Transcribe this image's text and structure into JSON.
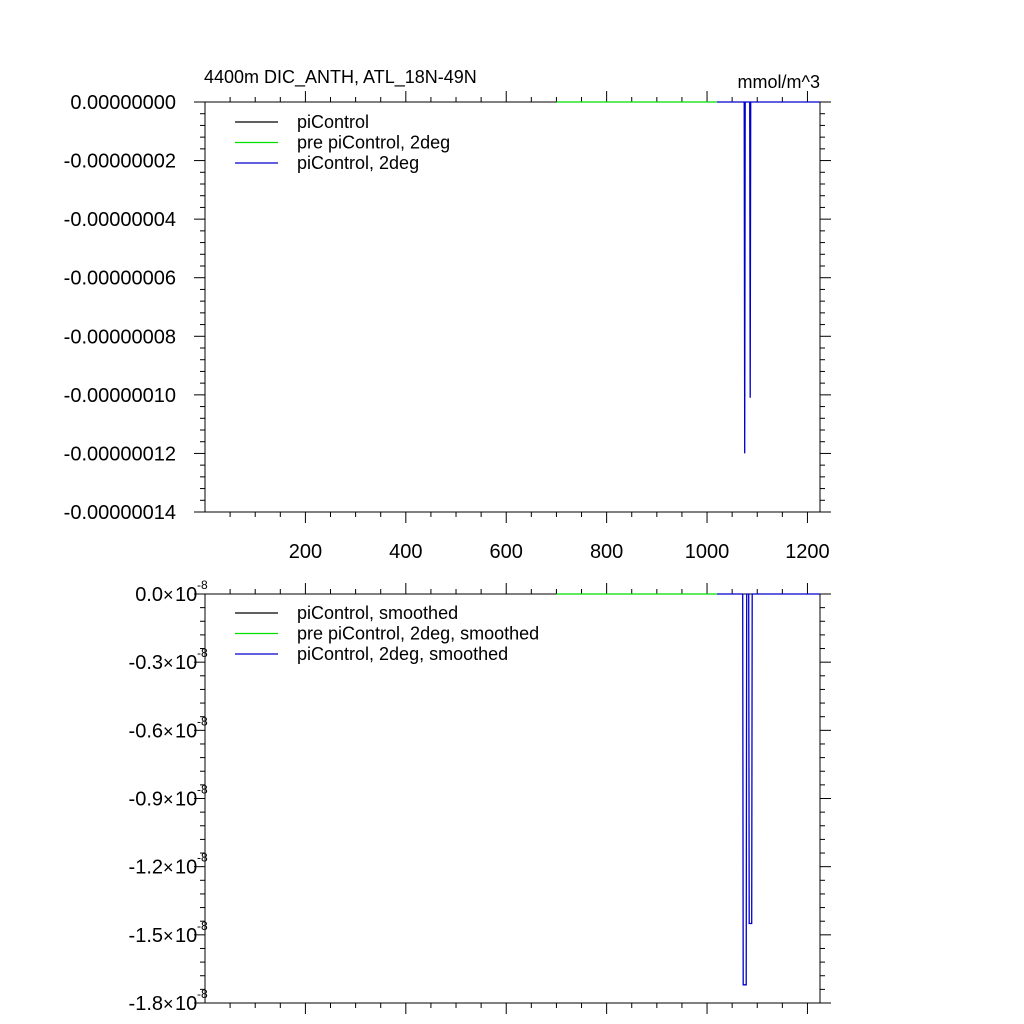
{
  "chart_data": [
    {
      "type": "line",
      "title": "4400m DIC_ANTH, ATL_18N-49N",
      "units": "mmol/m^3",
      "xlim": [
        0,
        1225
      ],
      "ylim": [
        -1.4e-07,
        0.0
      ],
      "x_ticks": [
        200,
        400,
        600,
        800,
        1000,
        1200
      ],
      "x_tick_labels": [
        "200",
        "400",
        "600",
        "800",
        "1000",
        "1200"
      ],
      "y_ticks": [
        0,
        -2e-08,
        -4e-08,
        -6e-08,
        -8e-08,
        -1e-07,
        -1.2e-07,
        -1.4e-07
      ],
      "y_tick_labels": [
        "0.00000000",
        "-0.00000002",
        "-0.00000004",
        "-0.00000006",
        "-0.00000008",
        "-0.00000010",
        "-0.00000012",
        "-0.00000014"
      ],
      "legend_position": "top-left",
      "series": [
        {
          "name": "piControl",
          "color": "#000000",
          "x": [],
          "y": []
        },
        {
          "name": "pre piControl, 2deg",
          "color": "#00dd00",
          "x": [
            700,
            1020
          ],
          "y": [
            0,
            0
          ]
        },
        {
          "name": "piControl, 2deg",
          "color": "#0000cc",
          "x": [
            1020,
            1074,
            1075,
            1076,
            1077,
            1085,
            1086,
            1087,
            1088,
            1225
          ],
          "y": [
            0,
            0,
            -1.2e-07,
            0,
            0,
            0,
            -1.01e-07,
            0,
            0,
            0
          ]
        }
      ]
    },
    {
      "type": "line",
      "title": "",
      "xlim": [
        0,
        1225
      ],
      "ylim": [
        -1.8,
        0.0
      ],
      "y_scale_label": "10",
      "y_scale_exp": "-8",
      "x_ticks": [
        200,
        400,
        600,
        800,
        1000,
        1200
      ],
      "y_ticks": [
        0,
        -0.3,
        -0.6,
        -0.9,
        -1.2,
        -1.5,
        -1.8
      ],
      "y_tick_labels": [
        "0.0",
        "-0.3",
        "-0.6",
        "-0.9",
        "-1.2",
        "-1.5",
        "-1.8"
      ],
      "legend_position": "top-left",
      "series": [
        {
          "name": "piControl, smoothed",
          "color": "#000000",
          "x": [],
          "y": []
        },
        {
          "name": "pre piControl, 2deg, smoothed",
          "color": "#00dd00",
          "x": [
            700,
            1020
          ],
          "y": [
            0,
            0
          ]
        },
        {
          "name": "piControl, 2deg, smoothed",
          "color": "#0000cc",
          "x": [
            1020,
            1071,
            1072,
            1078,
            1079,
            1083,
            1084,
            1089,
            1090,
            1225
          ],
          "y": [
            0,
            0,
            -1.72,
            -1.72,
            0,
            0,
            -1.45,
            -1.45,
            0,
            0
          ]
        }
      ]
    }
  ]
}
